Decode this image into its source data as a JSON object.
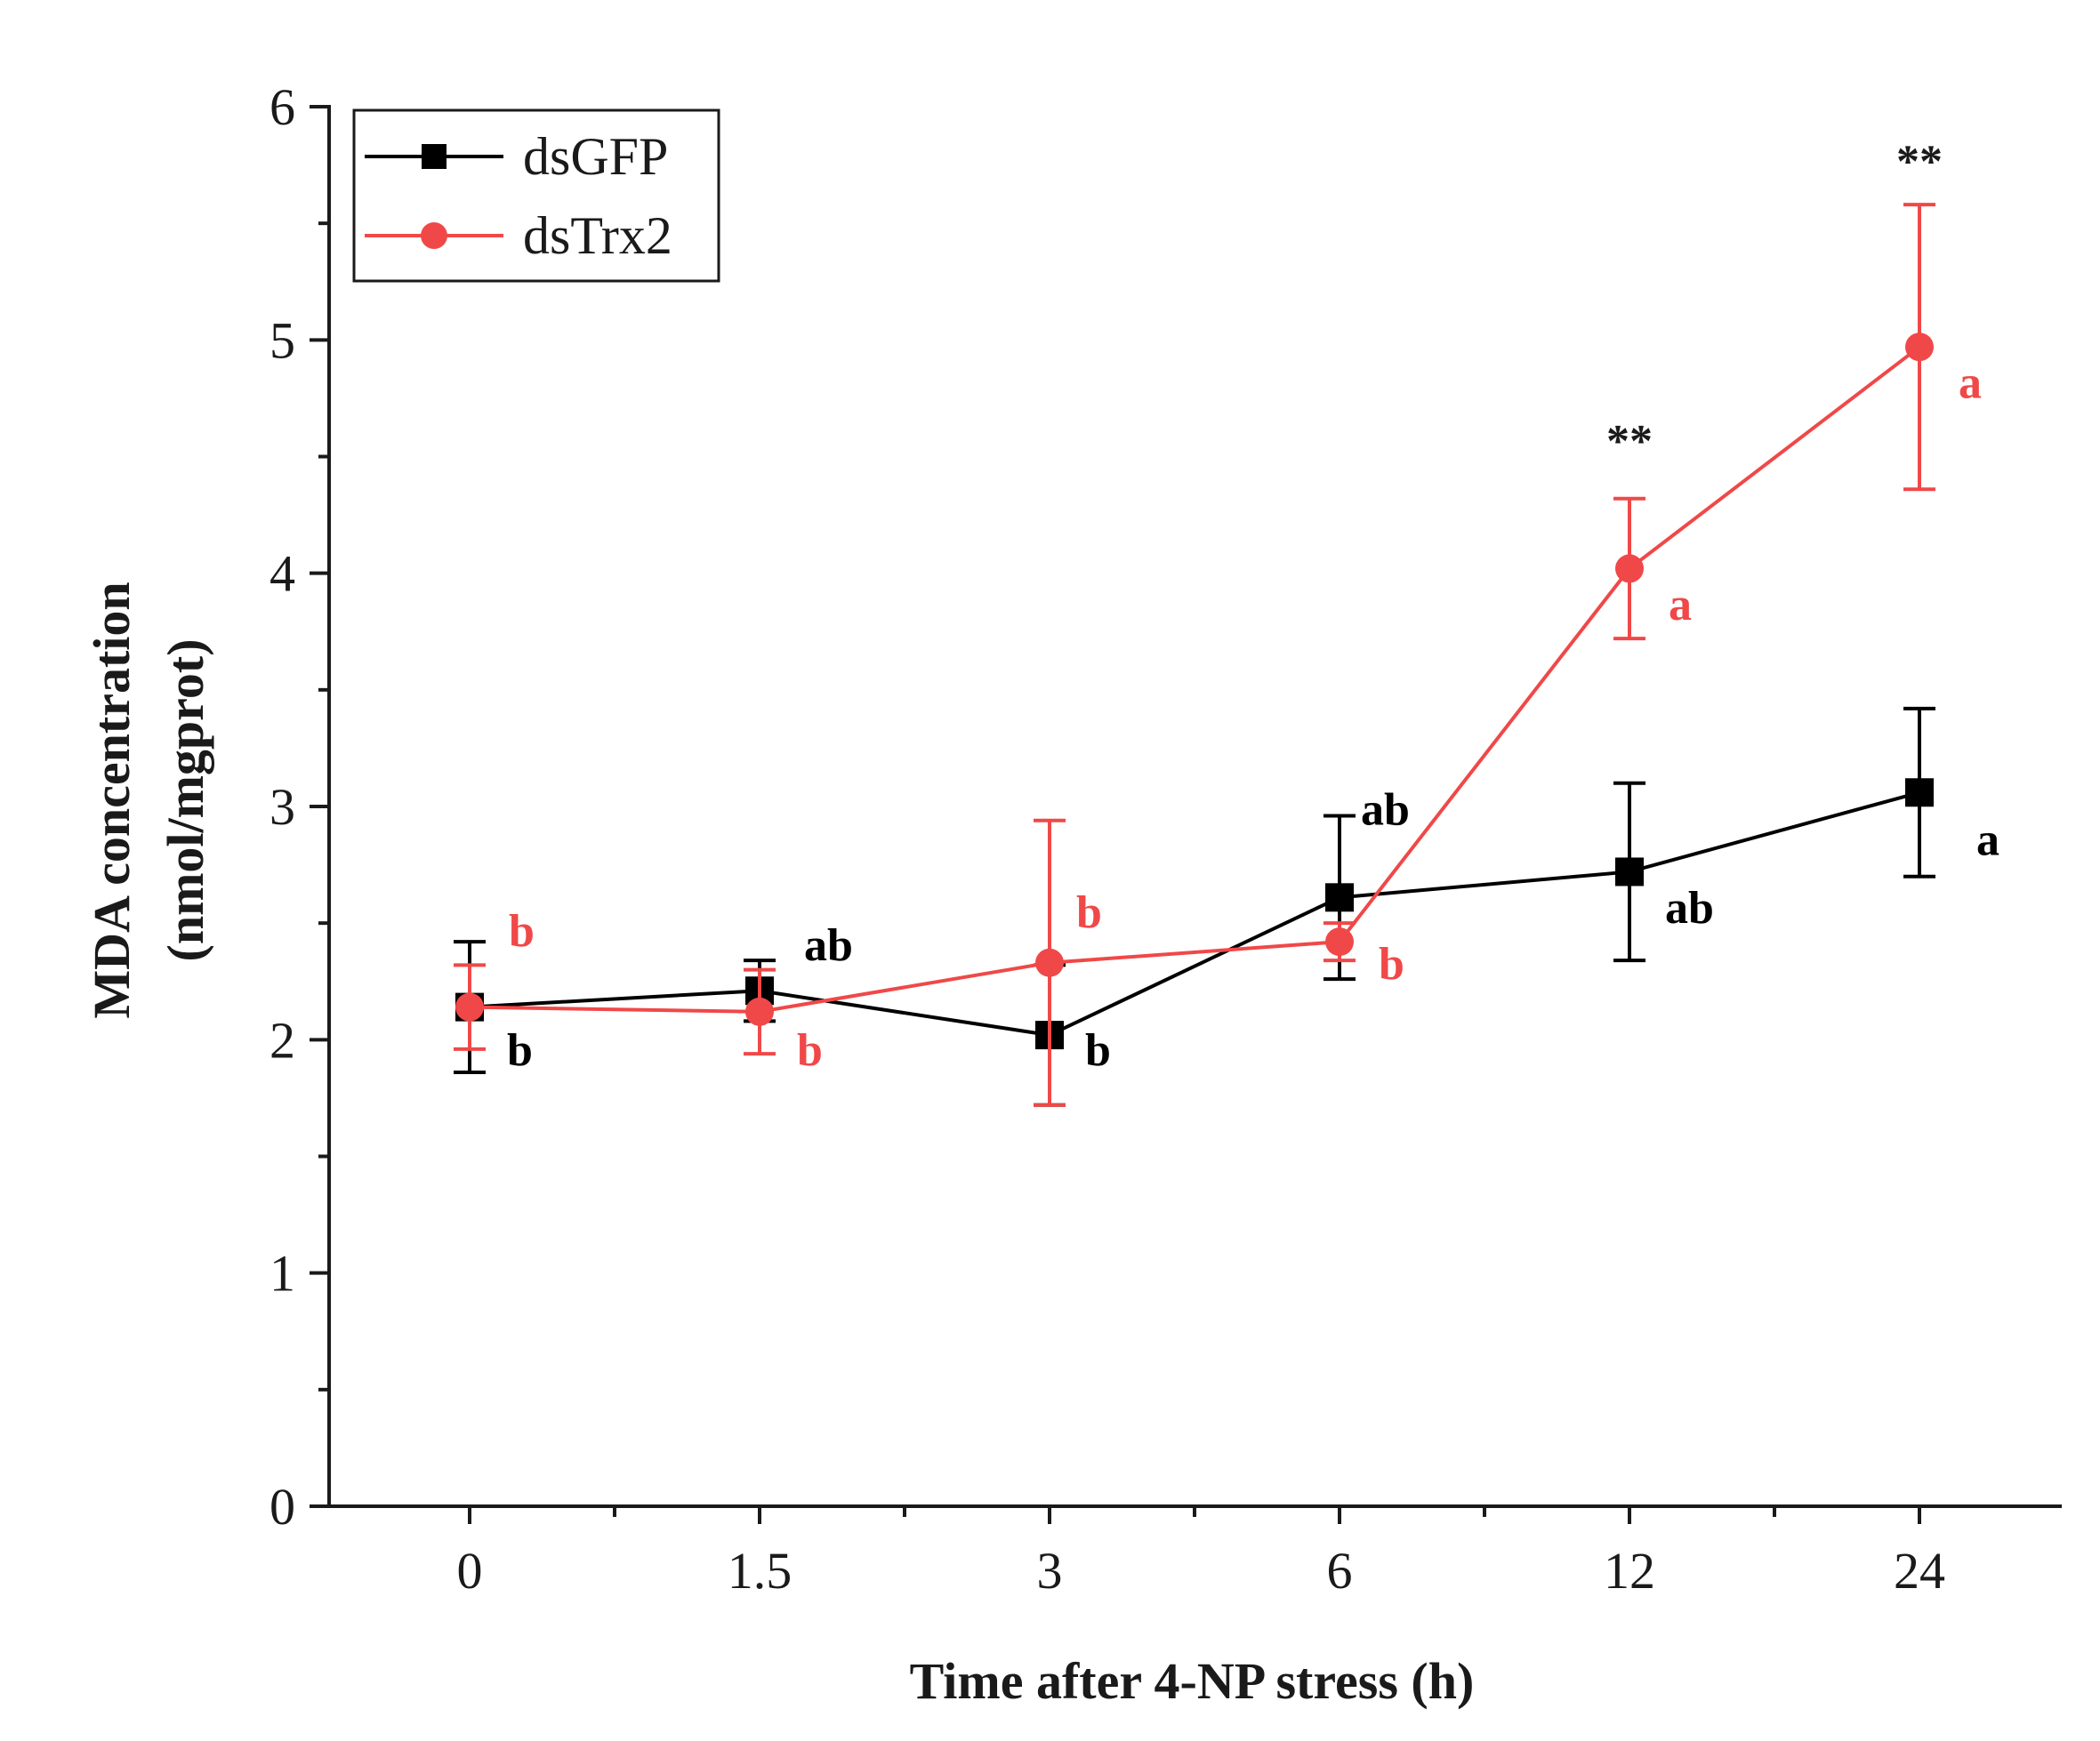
{
  "chart_data": {
    "type": "line",
    "title": "",
    "xlabel": "Time after 4-NP stress (h)",
    "ylabel_line1": "MDA concentration",
    "ylabel_line2": "(nmol/mgprot)",
    "categories": [
      "0",
      "1.5",
      "3",
      "6",
      "12",
      "24"
    ],
    "ylim": [
      0,
      6
    ],
    "yticks": [
      0,
      1,
      2,
      3,
      4,
      5,
      6
    ],
    "legend_position": "top-left",
    "grid": false,
    "series": [
      {
        "name": "dsGFP",
        "color": "#000000",
        "marker": "square",
        "values": [
          2.14,
          2.21,
          2.02,
          2.61,
          2.72,
          3.06
        ],
        "errors": [
          0.28,
          0.13,
          0.3,
          0.35,
          0.38,
          0.36
        ],
        "letters": [
          "b",
          "ab",
          "b",
          "ab",
          "ab",
          "a"
        ]
      },
      {
        "name": "dsTrx2",
        "color": "#f04848",
        "marker": "circle",
        "values": [
          2.14,
          2.12,
          2.33,
          2.42,
          4.02,
          4.97
        ],
        "errors": [
          0.18,
          0.18,
          0.61,
          0.08,
          0.3,
          0.61
        ],
        "letters": [
          "b",
          "b",
          "b",
          "b",
          "a",
          "a"
        ]
      }
    ],
    "significance": [
      {
        "category": "12",
        "label": "**"
      },
      {
        "category": "24",
        "label": "**"
      }
    ]
  }
}
